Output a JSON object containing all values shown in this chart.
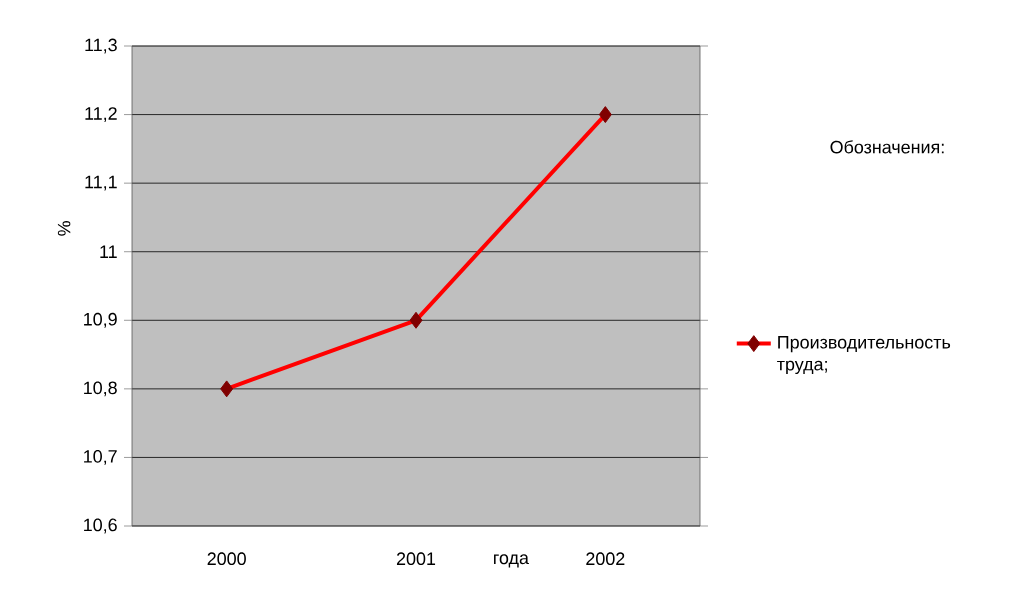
{
  "chart_data": {
    "type": "line",
    "xlabel": "года",
    "ylabel": "%",
    "legend_title": "Обозначения:",
    "categories": [
      "2000",
      "2001",
      "2002"
    ],
    "series": [
      {
        "name": "Производительность труда;",
        "color": "#ff0000",
        "values": [
          10.8,
          10.9,
          11.2
        ]
      }
    ],
    "ylim": [
      10.6,
      11.3
    ],
    "yticks": [
      {
        "value": 10.6,
        "label": "10,6"
      },
      {
        "value": 10.7,
        "label": "10,7"
      },
      {
        "value": 10.8,
        "label": "10,8"
      },
      {
        "value": 10.9,
        "label": "10,9"
      },
      11,
      {
        "value": 11.1,
        "label": "11,1"
      },
      {
        "value": 11.2,
        "label": "11,2"
      },
      {
        "value": 11.3,
        "label": "11,3"
      }
    ],
    "grid": "y",
    "legend": "right",
    "marker": "diamond",
    "line_style": "solid"
  }
}
